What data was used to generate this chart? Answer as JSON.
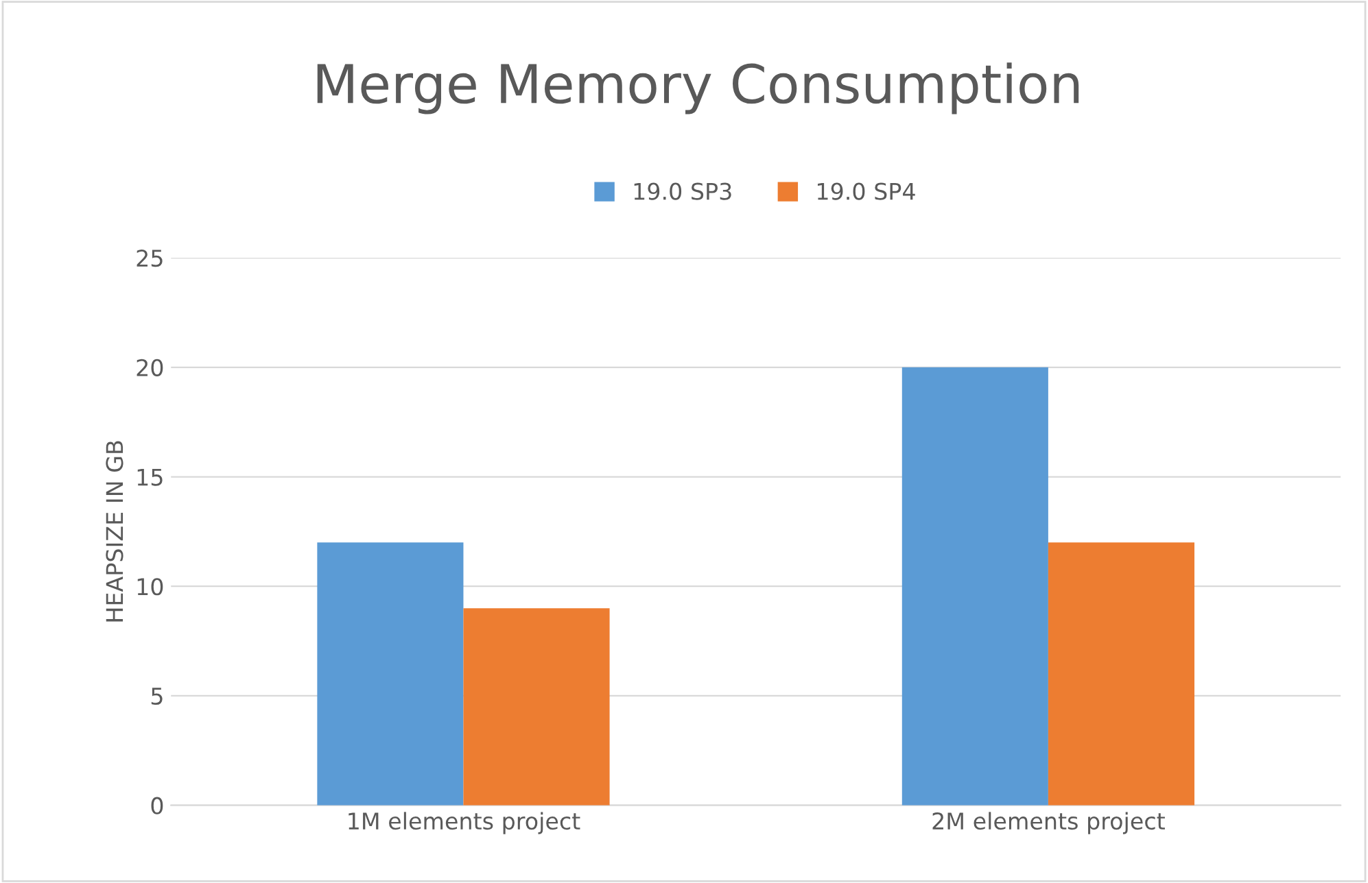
{
  "chart_data": {
    "type": "bar",
    "title": "Merge Memory Consumption",
    "ylabel": "HEAPSIZE IN GB",
    "categories": [
      "1M elements project",
      "2M elements project"
    ],
    "series": [
      {
        "name": "19.0 SP3",
        "color": "#5b9bd5",
        "values": [
          12,
          20
        ]
      },
      {
        "name": "19.0 SP4",
        "color": "#ed7d31",
        "values": [
          9,
          12
        ]
      }
    ],
    "ylim": [
      0,
      25
    ],
    "yticks": [
      0,
      5,
      10,
      15,
      20,
      25
    ],
    "grid": "y",
    "legend": "top"
  }
}
